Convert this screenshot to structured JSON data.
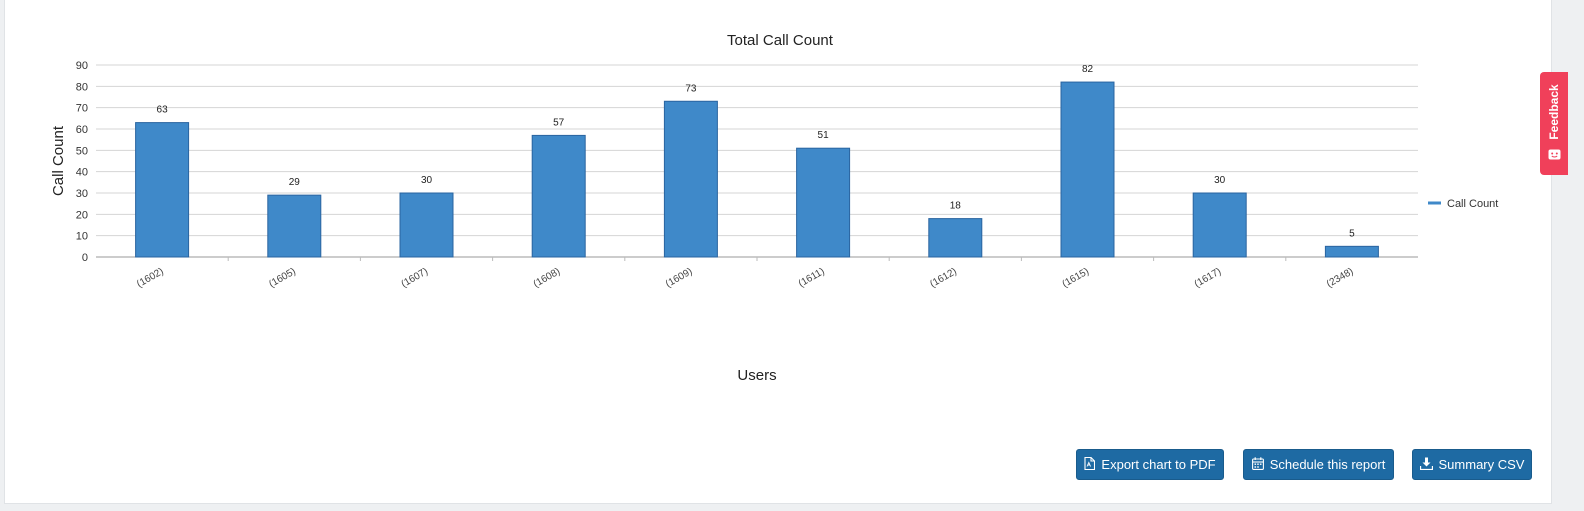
{
  "chart_data": {
    "type": "bar",
    "title": "Total Call Count",
    "xlabel": "Users",
    "ylabel": "Call Count",
    "ylim": [
      0,
      90
    ],
    "yticks": [
      0,
      10,
      20,
      30,
      40,
      50,
      60,
      70,
      80,
      90
    ],
    "categories": [
      "(1602)",
      "(1605)",
      "(1607)",
      "(1608)",
      "(1609)",
      "(1611)",
      "(1612)",
      "(1615)",
      "(1617)",
      "(2348)"
    ],
    "series": [
      {
        "name": "Call Count",
        "values": [
          63,
          29,
          30,
          57,
          73,
          51,
          18,
          82,
          30,
          5
        ]
      }
    ],
    "data_labels": true,
    "grid": true,
    "legend": "right",
    "bar_color": "#3f89c9",
    "bar_border_color": "#2a64a0"
  },
  "buttons": {
    "export_pdf": "Export chart to PDF",
    "schedule": "Schedule this report",
    "summary_csv": "Summary CSV"
  },
  "feedback": {
    "label": "Feedback"
  },
  "colors": {
    "button": "#1e6aa3",
    "feedback": "#f0405a"
  },
  "icons": {
    "export_pdf": "pdf-file-icon",
    "schedule": "calendar-icon",
    "summary_csv": "download-icon",
    "feedback": "feedback-icon"
  }
}
